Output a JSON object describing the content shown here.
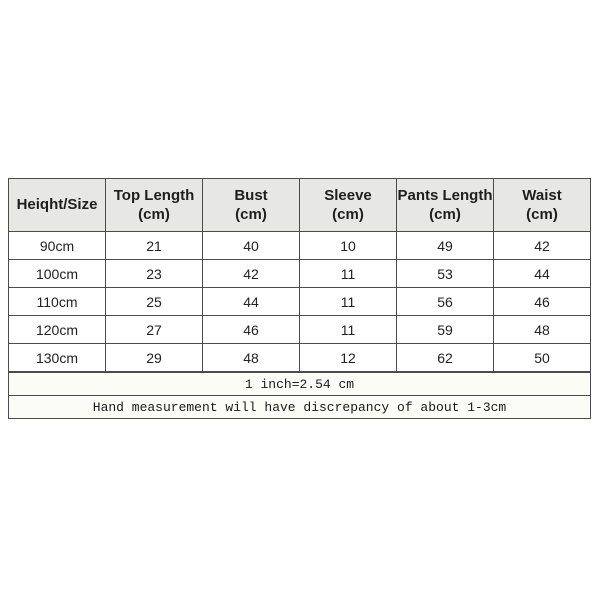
{
  "table": {
    "headers": [
      {
        "title": "Heiqht/Size",
        "unit": ""
      },
      {
        "title": "Top Length",
        "unit": "(cm)"
      },
      {
        "title": "Bust",
        "unit": "(cm)"
      },
      {
        "title": "Sleeve",
        "unit": "(cm)"
      },
      {
        "title": "Pants Length",
        "unit": "(cm)"
      },
      {
        "title": "Waist",
        "unit": "(cm)"
      }
    ],
    "rows": [
      [
        "90cm",
        "21",
        "40",
        "10",
        "49",
        "42"
      ],
      [
        "100cm",
        "23",
        "42",
        "11",
        "53",
        "44"
      ],
      [
        "110cm",
        "25",
        "44",
        "11",
        "56",
        "46"
      ],
      [
        "120cm",
        "27",
        "46",
        "11",
        "59",
        "48"
      ],
      [
        "130cm",
        "29",
        "48",
        "12",
        "62",
        "50"
      ]
    ],
    "notes": [
      "1 inch=2.54 cm",
      "Hand measurement will have discrepancy of about 1-3cm"
    ]
  },
  "colors": {
    "border": "#4b4b4b",
    "header_background": "#e7e7e5",
    "row_background": "#ffffff",
    "note_background": "#fcfcf6",
    "text": "#1f1f1f"
  },
  "chart_data": {
    "type": "table",
    "title": "",
    "columns": [
      "Heiqht/Size",
      "Top Length (cm)",
      "Bust (cm)",
      "Sleeve (cm)",
      "Pants Length (cm)",
      "Waist (cm)"
    ],
    "rows": [
      [
        "90cm",
        21,
        40,
        10,
        49,
        42
      ],
      [
        "100cm",
        23,
        42,
        11,
        53,
        44
      ],
      [
        "110cm",
        25,
        44,
        11,
        56,
        46
      ],
      [
        "120cm",
        27,
        46,
        11,
        59,
        48
      ],
      [
        "130cm",
        29,
        48,
        12,
        62,
        50
      ]
    ],
    "notes": [
      "1 inch=2.54 cm",
      "Hand measurement will have discrepancy of about 1-3cm"
    ]
  }
}
